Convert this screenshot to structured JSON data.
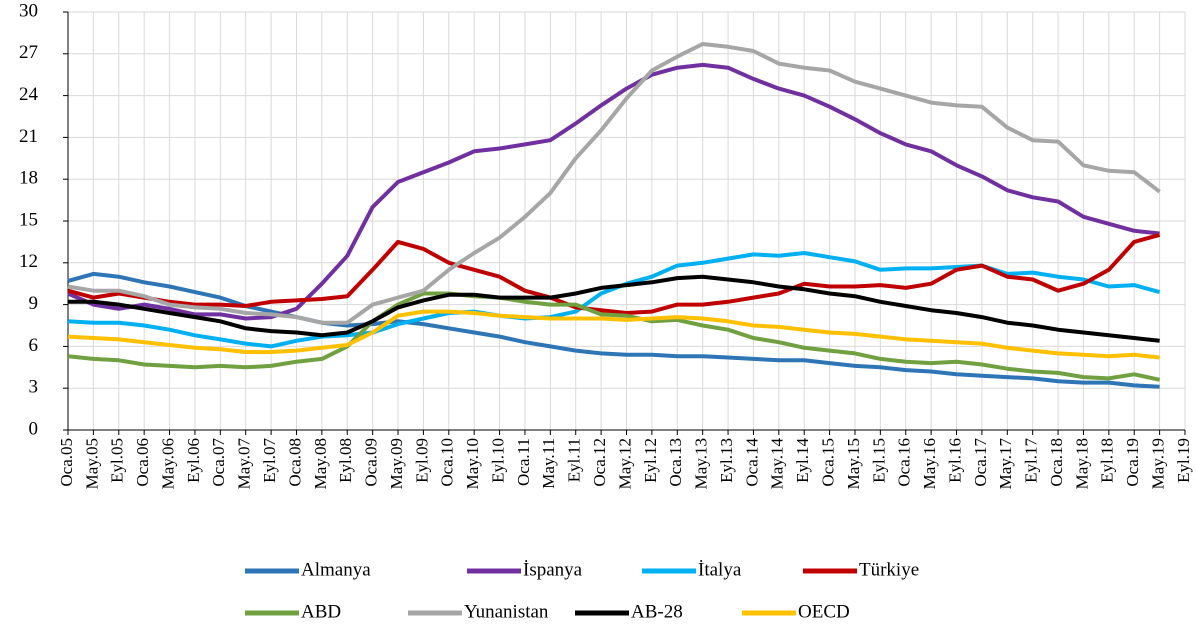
{
  "chart_data": {
    "type": "line",
    "categories": [
      "Oca.05",
      "May.05",
      "Eyl.05",
      "Oca.06",
      "May.06",
      "Eyl.06",
      "Oca.07",
      "May.07",
      "Eyl.07",
      "Oca.08",
      "May.08",
      "Eyl.08",
      "Oca.09",
      "May.09",
      "Eyl.09",
      "Oca.10",
      "May.10",
      "Eyl.10",
      "Oca.11",
      "May.11",
      "Eyl.11",
      "Oca.12",
      "May.12",
      "Eyl.12",
      "Oca.13",
      "May.13",
      "Eyl.13",
      "Oca.14",
      "May.14",
      "Eyl.14",
      "Oca.15",
      "May.15",
      "Eyl.15",
      "Oca.16",
      "May.16",
      "Eyl.16",
      "Oca.17",
      "May.17",
      "Eyl.17",
      "Oca.18",
      "May.18",
      "Eyl.18",
      "Oca.19",
      "May.19",
      "Eyl.19"
    ],
    "series": [
      {
        "name": "Almanya",
        "color": "#2e75b6",
        "values": [
          10.7,
          11.2,
          11.0,
          10.6,
          10.3,
          9.9,
          9.5,
          8.9,
          8.5,
          8.1,
          7.7,
          7.5,
          7.6,
          7.8,
          7.6,
          7.3,
          7.0,
          6.7,
          6.3,
          6.0,
          5.7,
          5.5,
          5.4,
          5.4,
          5.3,
          5.3,
          5.2,
          5.1,
          5.0,
          5.0,
          4.8,
          4.6,
          4.5,
          4.3,
          4.2,
          4.0,
          3.9,
          3.8,
          3.7,
          3.5,
          3.4,
          3.4,
          3.2,
          3.1,
          null
        ]
      },
      {
        "name": "İspanya",
        "color": "#7030a0",
        "values": [
          9.8,
          9.0,
          8.7,
          9.0,
          8.7,
          8.3,
          8.3,
          8.0,
          8.1,
          8.7,
          10.5,
          12.5,
          16.0,
          17.8,
          18.5,
          19.2,
          20.0,
          20.2,
          20.5,
          20.8,
          22.0,
          23.3,
          24.5,
          25.5,
          26.0,
          26.2,
          26.0,
          25.2,
          24.5,
          24.0,
          23.2,
          22.3,
          21.3,
          20.5,
          20.0,
          19.0,
          18.2,
          17.2,
          16.7,
          16.4,
          15.3,
          14.8,
          14.3,
          14.1,
          null
        ]
      },
      {
        "name": "İtalya",
        "color": "#00b0f0",
        "values": [
          7.8,
          7.7,
          7.7,
          7.5,
          7.2,
          6.8,
          6.5,
          6.2,
          6.0,
          6.4,
          6.7,
          6.8,
          7.0,
          7.6,
          8.0,
          8.4,
          8.5,
          8.2,
          8.0,
          8.1,
          8.5,
          9.8,
          10.5,
          11.0,
          11.8,
          12.0,
          12.3,
          12.6,
          12.5,
          12.7,
          12.4,
          12.1,
          11.5,
          11.6,
          11.6,
          11.7,
          11.8,
          11.2,
          11.3,
          11.0,
          10.8,
          10.3,
          10.4,
          9.9,
          null
        ]
      },
      {
        "name": "Türkiye",
        "color": "#c00000",
        "values": [
          10.0,
          9.5,
          9.8,
          9.5,
          9.2,
          9.0,
          9.0,
          8.9,
          9.2,
          9.3,
          9.4,
          9.6,
          11.5,
          13.5,
          13.0,
          12.0,
          11.5,
          11.0,
          10.0,
          9.5,
          8.8,
          8.6,
          8.4,
          8.5,
          9.0,
          9.0,
          9.2,
          9.5,
          9.8,
          10.5,
          10.3,
          10.3,
          10.4,
          10.2,
          10.5,
          11.5,
          11.8,
          11.0,
          10.8,
          10.0,
          10.5,
          11.5,
          13.5,
          14.0,
          null
        ]
      },
      {
        "name": "ABD",
        "color": "#70a040",
        "values": [
          5.3,
          5.1,
          5.0,
          4.7,
          4.6,
          4.5,
          4.6,
          4.5,
          4.6,
          4.9,
          5.1,
          6.0,
          7.8,
          9.0,
          9.8,
          9.8,
          9.6,
          9.5,
          9.2,
          9.0,
          9.0,
          8.3,
          8.2,
          7.8,
          7.9,
          7.5,
          7.2,
          6.6,
          6.3,
          5.9,
          5.7,
          5.5,
          5.1,
          4.9,
          4.8,
          4.9,
          4.7,
          4.4,
          4.2,
          4.1,
          3.8,
          3.7,
          4.0,
          3.6,
          null
        ]
      },
      {
        "name": "Yunanistan",
        "color": "#a6a6a6",
        "values": [
          10.3,
          10.0,
          10.0,
          9.6,
          9.0,
          8.8,
          8.7,
          8.4,
          8.3,
          8.1,
          7.7,
          7.7,
          9.0,
          9.5,
          10.0,
          11.5,
          12.7,
          13.8,
          15.3,
          17.0,
          19.5,
          21.5,
          23.8,
          25.8,
          26.8,
          27.7,
          27.5,
          27.2,
          26.3,
          26.0,
          25.8,
          25.0,
          24.5,
          24.0,
          23.5,
          23.3,
          23.2,
          21.7,
          20.8,
          20.7,
          19.0,
          18.6,
          18.5,
          17.1,
          null
        ]
      },
      {
        "name": "AB-28",
        "color": "#000000",
        "values": [
          9.2,
          9.2,
          9.0,
          8.7,
          8.4,
          8.1,
          7.8,
          7.3,
          7.1,
          7.0,
          6.8,
          7.0,
          7.8,
          8.8,
          9.3,
          9.7,
          9.7,
          9.5,
          9.5,
          9.5,
          9.8,
          10.2,
          10.4,
          10.6,
          10.9,
          11.0,
          10.8,
          10.6,
          10.3,
          10.1,
          9.8,
          9.6,
          9.2,
          8.9,
          8.6,
          8.4,
          8.1,
          7.7,
          7.5,
          7.2,
          7.0,
          6.8,
          6.6,
          6.4,
          null
        ]
      },
      {
        "name": "OECD",
        "color": "#ffc000",
        "values": [
          6.7,
          6.6,
          6.5,
          6.3,
          6.1,
          5.9,
          5.8,
          5.6,
          5.6,
          5.7,
          5.9,
          6.1,
          7.0,
          8.2,
          8.5,
          8.5,
          8.4,
          8.2,
          8.1,
          8.0,
          8.0,
          8.0,
          7.9,
          8.0,
          8.1,
          8.0,
          7.8,
          7.5,
          7.4,
          7.2,
          7.0,
          6.9,
          6.7,
          6.5,
          6.4,
          6.3,
          6.2,
          5.9,
          5.7,
          5.5,
          5.4,
          5.3,
          5.4,
          5.2,
          null
        ]
      }
    ],
    "ylim": [
      0,
      30
    ],
    "yticks": [
      0,
      3,
      6,
      9,
      12,
      15,
      18,
      21,
      24,
      27,
      30
    ],
    "grid": true
  }
}
